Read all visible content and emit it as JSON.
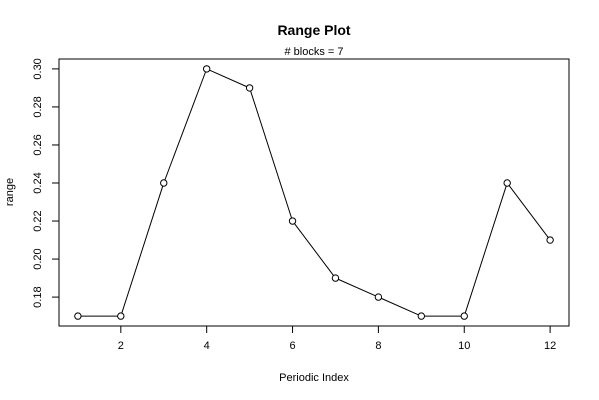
{
  "chart_data": {
    "type": "line",
    "title": "Range Plot",
    "subtitle": "# blocks =  7",
    "xlabel": "Periodic Index",
    "ylabel": "range",
    "x": [
      1,
      2,
      3,
      4,
      5,
      6,
      7,
      8,
      9,
      10,
      11,
      12
    ],
    "series": [
      {
        "values": [
          0.17,
          0.17,
          0.24,
          0.3,
          0.29,
          0.22,
          0.19,
          0.18,
          0.17,
          0.17,
          0.24,
          0.21
        ]
      }
    ],
    "xticks": [
      "2",
      "4",
      "6",
      "8",
      "10",
      "12"
    ],
    "yticks": [
      "0.18",
      "0.20",
      "0.22",
      "0.24",
      "0.26",
      "0.28",
      "0.30"
    ],
    "xlim": [
      0.56,
      12.44
    ],
    "ylim": [
      0.1648,
      0.3052
    ],
    "grid": false,
    "marker": "open-circle",
    "line_color": "#000000"
  }
}
